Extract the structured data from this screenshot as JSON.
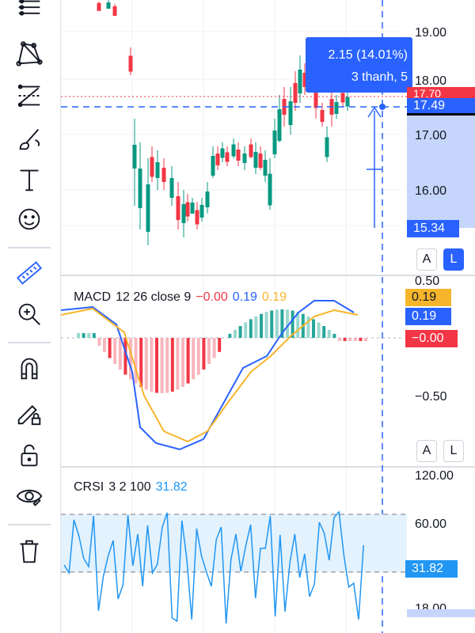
{
  "toolbar": {
    "tools": [
      {
        "name": "trend-lines-icon"
      },
      {
        "name": "patterns-icon"
      },
      {
        "name": "fib-icon"
      },
      {
        "name": "brush-icon"
      },
      {
        "name": "text-icon"
      },
      {
        "name": "emoji-icon"
      },
      {
        "name": "ruler-icon"
      },
      {
        "name": "zoom-icon"
      },
      {
        "name": "magnet-icon"
      },
      {
        "name": "lock-drawing-icon"
      },
      {
        "name": "unlock-icon"
      },
      {
        "name": "eye-icon"
      },
      {
        "name": "trash-icon"
      }
    ]
  },
  "price_pane": {
    "axis_labels": [
      "19.00",
      "18.00",
      "17.00",
      "16.00"
    ],
    "price_tags": {
      "red": "17.70",
      "last": "17.49",
      "measure_low": "15.34"
    },
    "tooltip": {
      "line1": "2.15 (14.01%)",
      "line2": "3 thanh, 5"
    },
    "colors": {
      "up": "#089981",
      "down": "#f23645",
      "accent": "#2962ff"
    }
  },
  "macd": {
    "legend": {
      "name": "MACD",
      "params": "12 26 close 9",
      "v1": "−0.00",
      "v2": "0.19",
      "v3": "0.19"
    },
    "axis_labels": [
      "0.50",
      "−0.50"
    ],
    "tags": {
      "orange": "0.19",
      "blue": "0.19",
      "red": "−0.00"
    },
    "colors": {
      "macd": "#2962ff",
      "signal": "#f7b52c",
      "hist_up": "#26a69a",
      "hist_down": "#f23645"
    }
  },
  "crsi": {
    "legend": {
      "name": "CRSI",
      "params": "3 2 100",
      "value": "31.82"
    },
    "axis_labels": [
      "120.00",
      "60.00",
      "18.00"
    ],
    "tag": "31.82",
    "colors": {
      "line": "#2196f3",
      "band": "#e3f2fd"
    }
  },
  "scale_buttons": {
    "a": "A",
    "l": "L"
  }
}
